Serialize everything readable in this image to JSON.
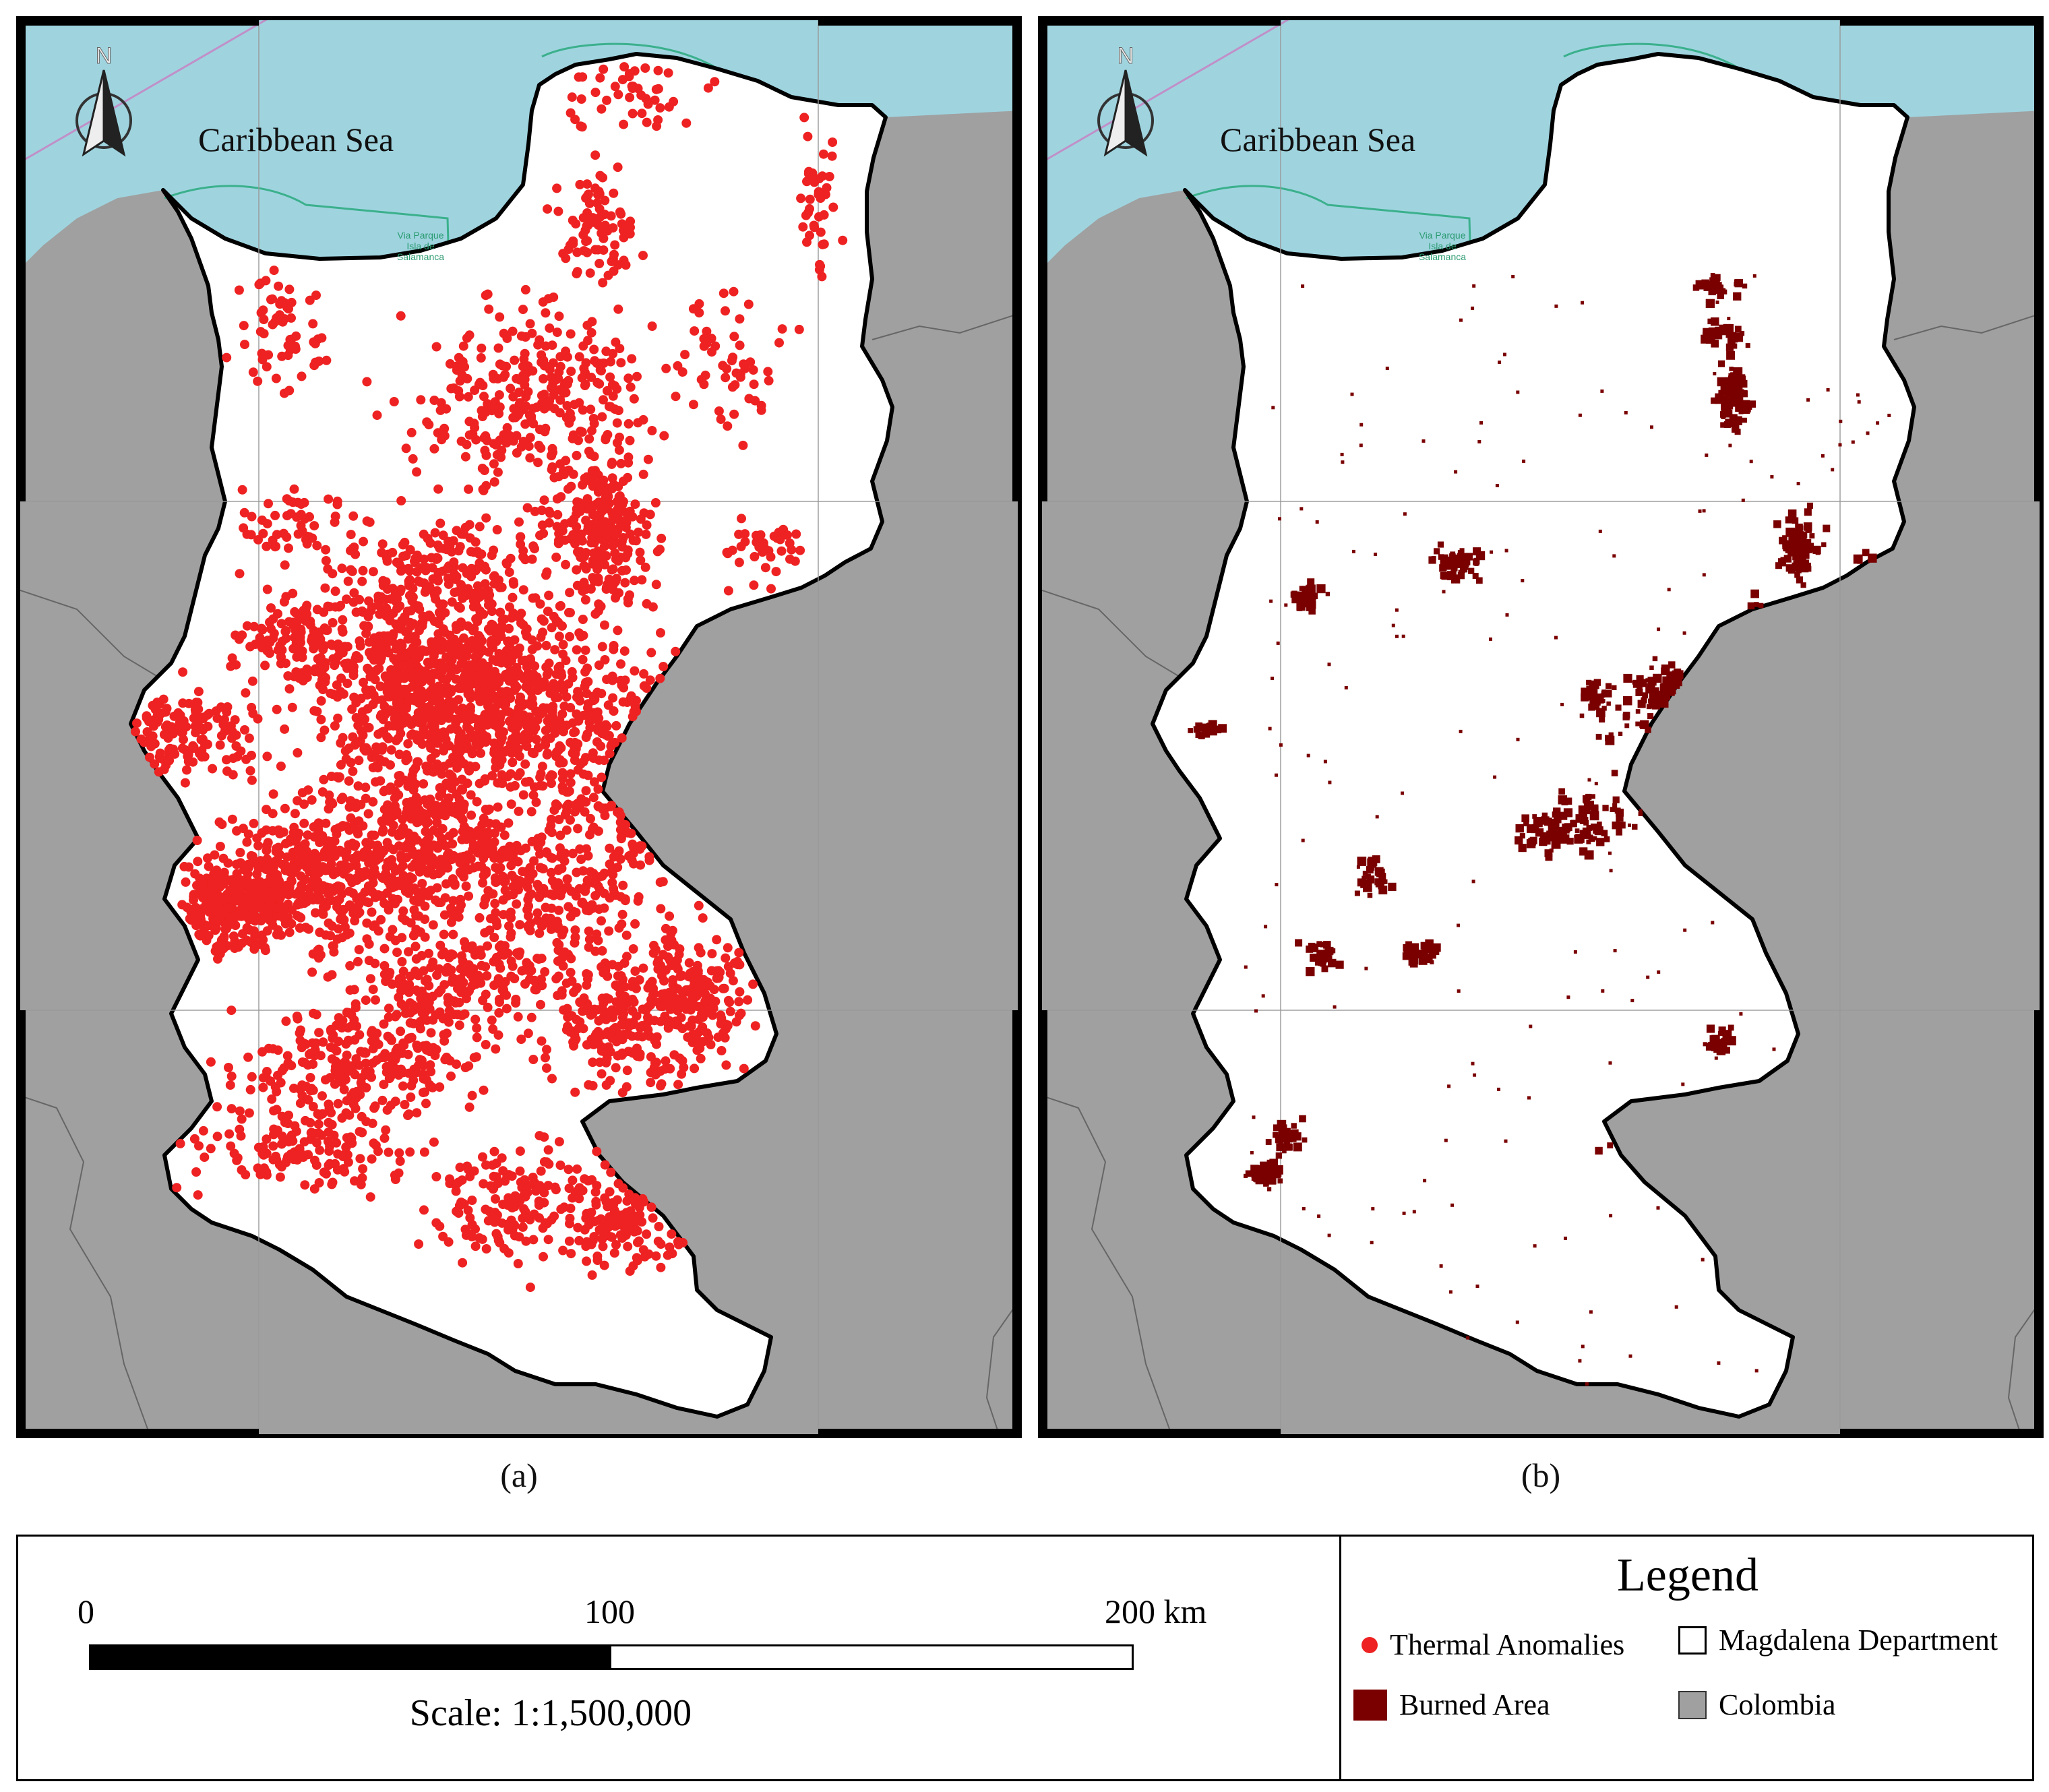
{
  "maps": [
    {
      "id": "a",
      "caption": "(a)",
      "sea_label": "Caribbean Sea",
      "park_label": [
        "Via Parque",
        "Isla de",
        "Salamanca"
      ],
      "north_label": "N"
    },
    {
      "id": "b",
      "caption": "(b)",
      "sea_label": "Caribbean Sea",
      "park_label": [
        "Via Parque",
        "Isla de",
        "Salamanca"
      ],
      "north_label": "N"
    }
  ],
  "scale_bar": {
    "ticks": [
      "0",
      "100",
      "200 km"
    ],
    "scale_text": "Scale: 1:1,500,000"
  },
  "legend": {
    "title": "Legend",
    "items": [
      {
        "label": "Thermal Anomalies",
        "symbol": "red-dot",
        "color": "#ee2222"
      },
      {
        "label": "Magdalena Department",
        "symbol": "white-square",
        "color": "#ffffff"
      },
      {
        "label": "Burned Area",
        "symbol": "dark-red-square",
        "color": "#7a0000"
      },
      {
        "label": "Colombia",
        "symbol": "gray-square",
        "color": "#a0a0a0"
      }
    ]
  },
  "colors": {
    "sea": "#9fd4df",
    "land": "#a0a0a0",
    "department": "#ffffff",
    "thermal": "#ee2222",
    "burned": "#7a0000"
  }
}
